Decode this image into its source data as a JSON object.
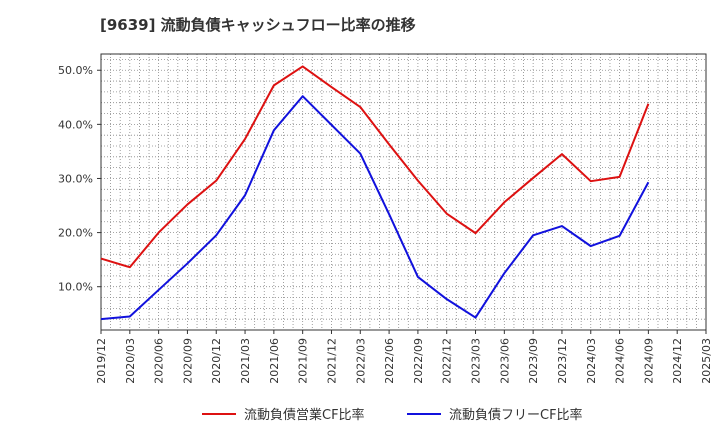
{
  "title": "[9639]  流動負債キャッシュフロー比率の推移",
  "colors": {
    "red": "#dd1111",
    "blue": "#1111dd",
    "grid": "#888888",
    "axis": "#333333"
  },
  "chart_data": {
    "type": "line",
    "title": "[9639]  流動負債キャッシュフロー比率の推移",
    "xlabel": "",
    "ylabel": "",
    "categories": [
      "2019/12",
      "2020/03",
      "2020/06",
      "2020/09",
      "2020/12",
      "2021/03",
      "2021/06",
      "2021/09",
      "2021/12",
      "2022/03",
      "2022/06",
      "2022/09",
      "2022/12",
      "2023/03",
      "2023/06",
      "2023/09",
      "2023/12",
      "2024/03",
      "2024/06",
      "2024/09",
      "2024/12",
      "2025/03"
    ],
    "y_ticks": [
      10,
      20,
      30,
      40,
      50
    ],
    "y_tick_labels": [
      "10.0%",
      "20.0%",
      "30.0%",
      "40.0%",
      "50.0%"
    ],
    "ylim": [
      2,
      53
    ],
    "grid": true,
    "legend_position": "bottom",
    "series": [
      {
        "name": "流動負債営業CF比率",
        "color": "#dd1111",
        "points": [
          {
            "x": "2019/12",
            "y": 15.2
          },
          {
            "x": "2020/03",
            "y": 13.6
          },
          {
            "x": "2020/06",
            "y": 20.0
          },
          {
            "x": "2020/09",
            "y": 25.2
          },
          {
            "x": "2020/12",
            "y": 29.6
          },
          {
            "x": "2021/03",
            "y": 37.3
          },
          {
            "x": "2021/06",
            "y": 47.2
          },
          {
            "x": "2021/09",
            "y": 50.7
          },
          {
            "x": "2021/12",
            "y": 46.9
          },
          {
            "x": "2022/03",
            "y": 43.2
          },
          {
            "x": "2022/06",
            "y": 36.3
          },
          {
            "x": "2022/09",
            "y": 29.6
          },
          {
            "x": "2022/12",
            "y": 23.5
          },
          {
            "x": "2023/03",
            "y": 19.9
          },
          {
            "x": "2023/06",
            "y": 25.6
          },
          {
            "x": "2023/09",
            "y": 30.1
          },
          {
            "x": "2023/12",
            "y": 34.5
          },
          {
            "x": "2024/03",
            "y": 29.5
          },
          {
            "x": "2024/06",
            "y": 30.3
          },
          {
            "x": "2024/09",
            "y": 43.8
          }
        ]
      },
      {
        "name": "流動負債フリーCF比率",
        "color": "#1111dd",
        "points": [
          {
            "x": "2019/12",
            "y": 4.0
          },
          {
            "x": "2020/03",
            "y": 4.5
          },
          {
            "x": "2020/06",
            "y": 9.4
          },
          {
            "x": "2020/09",
            "y": 14.3
          },
          {
            "x": "2020/12",
            "y": 19.5
          },
          {
            "x": "2021/03",
            "y": 26.9
          },
          {
            "x": "2021/06",
            "y": 38.9
          },
          {
            "x": "2021/09",
            "y": 45.2
          },
          {
            "x": "2021/12",
            "y": 39.9
          },
          {
            "x": "2022/03",
            "y": 34.6
          },
          {
            "x": "2022/06",
            "y": 23.4
          },
          {
            "x": "2022/09",
            "y": 11.8
          },
          {
            "x": "2022/12",
            "y": 7.7
          },
          {
            "x": "2023/03",
            "y": 4.3
          },
          {
            "x": "2023/06",
            "y": 12.5
          },
          {
            "x": "2023/09",
            "y": 19.5
          },
          {
            "x": "2023/12",
            "y": 21.2
          },
          {
            "x": "2024/03",
            "y": 17.5
          },
          {
            "x": "2024/06",
            "y": 19.4
          },
          {
            "x": "2024/09",
            "y": 29.3
          }
        ]
      }
    ]
  }
}
